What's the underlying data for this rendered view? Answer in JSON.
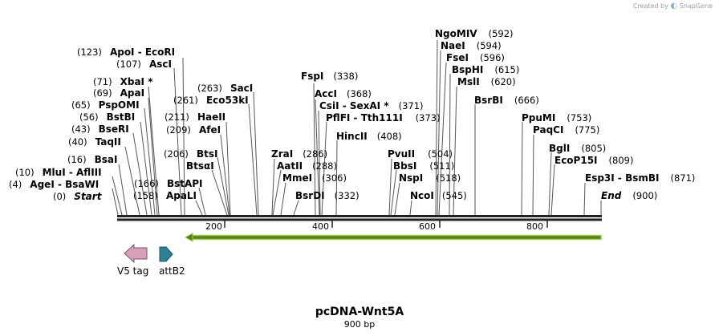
{
  "brand": {
    "prefix": "Created by",
    "name": "SnapGene"
  },
  "plasmid": {
    "name": "pcDNA-Wnt5A",
    "length_label": "900 bp"
  },
  "ruler": {
    "ticks": [
      "200",
      "400",
      "600",
      "800"
    ]
  },
  "features": {
    "v5": "V5 tag",
    "attb2": "attB2"
  },
  "labels": {
    "apoi_ecori": {
      "pos": "(123)",
      "name": "ApoI  - EcoRI"
    },
    "asci": {
      "pos": "(107)",
      "name": "AscI"
    },
    "xbai": {
      "pos": "(71)",
      "name": "XbaI *"
    },
    "apai": {
      "pos": "(69)",
      "name": "ApaI"
    },
    "pspomi": {
      "pos": "(65)",
      "name": "PspOMI"
    },
    "bstbi": {
      "pos": "(56)",
      "name": "BstBI"
    },
    "bseri": {
      "pos": "(43)",
      "name": "BseRI"
    },
    "taqii": {
      "pos": "(40)",
      "name": "TaqII"
    },
    "bsai": {
      "pos": "(16)",
      "name": "BsaI"
    },
    "mlui": {
      "pos": "(10)",
      "name": "MluI  - AflIII"
    },
    "agei": {
      "pos": "(4)",
      "name": "AgeI  - BsaWI"
    },
    "start": {
      "pos": "(0)",
      "name": "Start"
    },
    "saci": {
      "pos": "(263)",
      "name": "SacI"
    },
    "eco53ki": {
      "pos": "(261)",
      "name": "Eco53kI"
    },
    "haeii": {
      "pos": "(211)",
      "name": "HaeII"
    },
    "afei": {
      "pos": "(209)",
      "name": "AfeI"
    },
    "btsi": {
      "pos": "(206)",
      "name": "BtsI"
    },
    "btsgi": {
      "pos": "",
      "name": "BtsαI"
    },
    "bstapi": {
      "pos": "(166)",
      "name": "BstAPI"
    },
    "apali": {
      "pos": "(158)",
      "name": "ApaLI"
    },
    "fspi": {
      "pos": "(338)",
      "name": "FspI"
    },
    "acci": {
      "pos": "(368)",
      "name": "AccI"
    },
    "csii": {
      "pos": "(371)",
      "name": "CsiI  - SexAI *"
    },
    "pflfi": {
      "pos": "(373)",
      "name": "PflFI  - Tth111I"
    },
    "hincii": {
      "pos": "(408)",
      "name": "HincII"
    },
    "zrai": {
      "pos": "(286)",
      "name": "ZraI"
    },
    "aatii": {
      "pos": "(288)",
      "name": "AatII"
    },
    "mmei": {
      "pos": "(306)",
      "name": "MmeI"
    },
    "bsrdi": {
      "pos": "(332)",
      "name": "BsrDI"
    },
    "pvuii": {
      "pos": "(504)",
      "name": "PvuII"
    },
    "bbsi": {
      "pos": "(511)",
      "name": "BbsI"
    },
    "nspi": {
      "pos": "(518)",
      "name": "NspI"
    },
    "ncoi": {
      "pos": "(545)",
      "name": "NcoI"
    },
    "ngomiv": {
      "pos": "(592)",
      "name": "NgoMIV"
    },
    "naei": {
      "pos": "(594)",
      "name": "NaeI"
    },
    "fsei": {
      "pos": "(596)",
      "name": "FseI"
    },
    "bsphi": {
      "pos": "(615)",
      "name": "BspHI"
    },
    "msli": {
      "pos": "(620)",
      "name": "MslI"
    },
    "bsrbi": {
      "pos": "(666)",
      "name": "BsrBI"
    },
    "ppumi": {
      "pos": "(753)",
      "name": "PpuMI"
    },
    "paqci": {
      "pos": "(775)",
      "name": "PaqCI"
    },
    "bgli": {
      "pos": "(805)",
      "name": "BglI"
    },
    "ecop15i": {
      "pos": "(809)",
      "name": "EcoP15I"
    },
    "esp3i": {
      "pos": "(871)",
      "name": "Esp3I  - BsmBI"
    },
    "end": {
      "pos": "(900)",
      "name": "End"
    }
  },
  "colors": {
    "v5_fill": "#d8a0b8",
    "attb2_fill": "#2f7f96",
    "orf_outline": "#9bd34a"
  }
}
